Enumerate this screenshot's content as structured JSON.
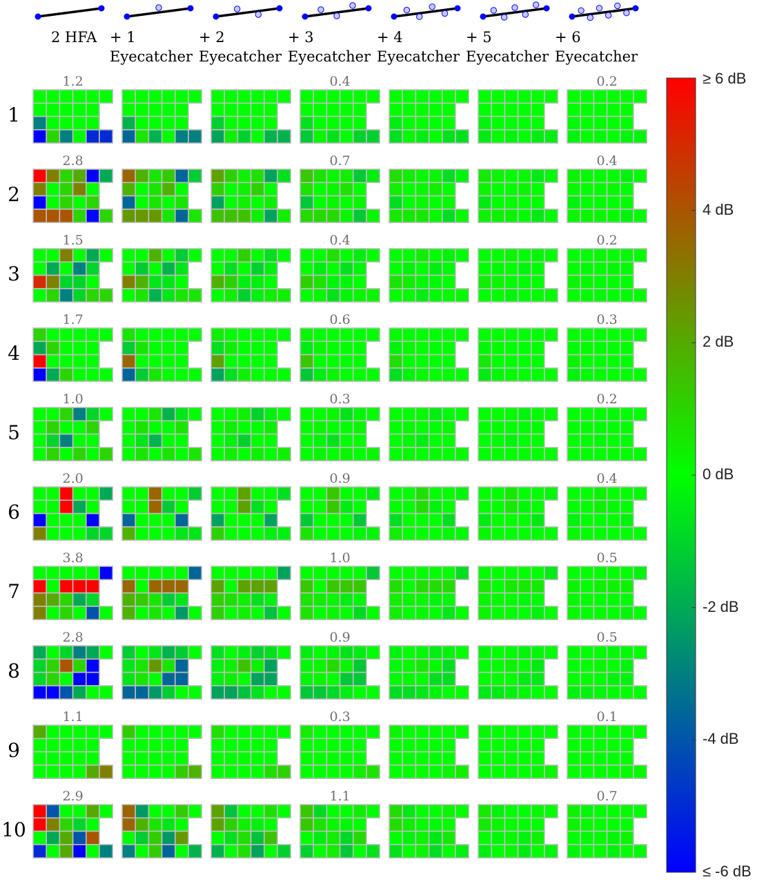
{
  "colors": {
    "pos": "#ff0000",
    "zero": "#00ff00",
    "neg": "#0000ff",
    "grid": "#bfbfbf",
    "frame": "#000000"
  },
  "chart_data": {
    "type": "heatmap",
    "columns": [
      {
        "label": "2 HFA",
        "eyecatchers": 0
      },
      {
        "label": "+ 1\nEyecatcher",
        "eyecatchers": 1
      },
      {
        "label": "+ 2\nEyecatcher",
        "eyecatchers": 2
      },
      {
        "label": "+ 3\nEyecatcher",
        "eyecatchers": 3
      },
      {
        "label": "+ 4\nEyecatcher",
        "eyecatchers": 4
      },
      {
        "label": "+ 5\nEyecatcher",
        "eyecatchers": 5
      },
      {
        "label": "+ 6\nEyecatcher",
        "eyecatchers": 6
      }
    ],
    "rows": [
      "1",
      "2",
      "3",
      "4",
      "5",
      "6",
      "7",
      "8",
      "9",
      "10"
    ],
    "scores": [
      [
        "1.2",
        "",
        "",
        "0.4",
        "",
        "",
        "0.2"
      ],
      [
        "2.8",
        "",
        "",
        "0.7",
        "",
        "",
        "0.4"
      ],
      [
        "1.5",
        "",
        "",
        "0.4",
        "",
        "",
        "0.2"
      ],
      [
        "1.7",
        "",
        "",
        "0.6",
        "",
        "",
        "0.3"
      ],
      [
        "1.0",
        "",
        "",
        "0.3",
        "",
        "",
        "0.2"
      ],
      [
        "2.0",
        "",
        "",
        "0.9",
        "",
        "",
        "0.4"
      ],
      [
        "3.8",
        "",
        "",
        "1.0",
        "",
        "",
        "0.5"
      ],
      [
        "2.8",
        "",
        "",
        "0.9",
        "",
        "",
        "0.5"
      ],
      [
        "1.1",
        "",
        "",
        "0.3",
        "",
        "",
        "0.1"
      ],
      [
        "2.9",
        "",
        "",
        "1.1",
        "",
        "",
        "0.7"
      ]
    ],
    "grid_mask": [
      [
        1,
        1,
        1,
        1,
        1,
        1
      ],
      [
        1,
        1,
        1,
        1,
        1,
        0
      ],
      [
        1,
        1,
        1,
        1,
        1,
        0
      ],
      [
        1,
        1,
        1,
        1,
        1,
        1
      ]
    ],
    "fields": [
      [
        [
          0,
          0,
          0,
          0,
          0,
          0
        ],
        [
          0,
          0,
          0,
          0,
          0,
          0
        ],
        [
          -3,
          0,
          0,
          0,
          0,
          0
        ],
        [
          -6,
          1,
          -3,
          0,
          -5,
          -5
        ]
      ],
      [
        [
          6,
          3,
          1,
          2,
          -6,
          -2
        ],
        [
          3,
          0,
          1,
          3,
          0,
          0
        ],
        [
          -6,
          0,
          1,
          0,
          1,
          0
        ],
        [
          4,
          4,
          4,
          1,
          -6,
          1
        ]
      ],
      [
        [
          0,
          0,
          3,
          0,
          -2,
          0
        ],
        [
          0,
          -2,
          0,
          -3,
          -1,
          0
        ],
        [
          5,
          3,
          -1,
          -1,
          0,
          0
        ],
        [
          0,
          1,
          -3,
          -1,
          1,
          1
        ]
      ],
      [
        [
          1,
          0,
          0,
          0,
          0,
          0
        ],
        [
          -2,
          1,
          0,
          0,
          0,
          0
        ],
        [
          6,
          0,
          0,
          0,
          0,
          0
        ],
        [
          -6,
          -2,
          1,
          0,
          0,
          0
        ]
      ],
      [
        [
          0,
          0,
          1,
          -3,
          -1,
          0
        ],
        [
          0,
          1,
          0,
          0,
          1,
          0
        ],
        [
          0,
          -1,
          -3,
          0,
          0,
          0
        ],
        [
          0,
          1,
          0,
          1,
          0,
          1
        ]
      ],
      [
        [
          0,
          0,
          6,
          0,
          0,
          -2
        ],
        [
          0,
          0,
          6,
          -2,
          0,
          0
        ],
        [
          -6,
          0,
          0,
          0,
          -6,
          0
        ],
        [
          3,
          0,
          0,
          0,
          -1,
          -1
        ]
      ],
      [
        [
          0,
          0,
          0,
          0,
          0,
          -6
        ],
        [
          6,
          0,
          6,
          6,
          6,
          0
        ],
        [
          3,
          2,
          1,
          -2,
          -1,
          0
        ],
        [
          3,
          0,
          1,
          0,
          -4,
          0
        ]
      ],
      [
        [
          -2,
          0,
          -1,
          -3,
          -2,
          0
        ],
        [
          -1,
          1,
          4,
          1,
          -6,
          0
        ],
        [
          -1,
          1,
          0,
          -6,
          -6,
          0
        ],
        [
          -6,
          -6,
          -4,
          -2,
          0,
          0
        ]
      ],
      [
        [
          2,
          0,
          0,
          0,
          0,
          0
        ],
        [
          0,
          0,
          0,
          0,
          0,
          0
        ],
        [
          0,
          0,
          0,
          0,
          0,
          0
        ],
        [
          0,
          0,
          0,
          0,
          2,
          3
        ]
      ],
      [
        [
          6,
          -4,
          0,
          0,
          2,
          0
        ],
        [
          6,
          3,
          1,
          -1,
          0,
          0
        ],
        [
          0,
          -2,
          2,
          -4,
          4,
          0
        ],
        [
          -5,
          0,
          2,
          -6,
          0,
          -3
        ]
      ]
    ],
    "colorbar": {
      "min": -6,
      "max": 6,
      "ticks": [
        {
          "value": 6,
          "label": "≥ 6 dB"
        },
        {
          "value": 4,
          "label": "4 dB"
        },
        {
          "value": 2,
          "label": "2 dB"
        },
        {
          "value": 0,
          "label": "0 dB"
        },
        {
          "value": -2,
          "label": "-2 dB"
        },
        {
          "value": -4,
          "label": "-4 dB"
        },
        {
          "value": -6,
          "label": "≤ -6 dB"
        }
      ]
    }
  }
}
